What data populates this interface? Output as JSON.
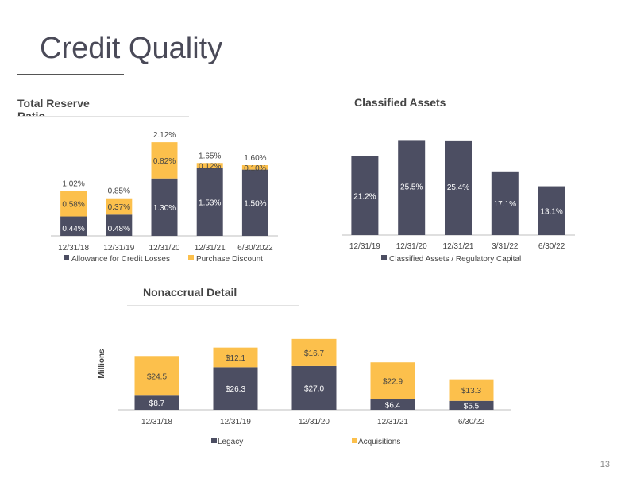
{
  "title": "Credit Quality",
  "page_number": "13",
  "colors": {
    "primary": "#4c4e62",
    "secondary": "#fcc04c",
    "axis": "#bfbfbf"
  },
  "chart_data": [
    {
      "type": "bar",
      "stacked": true,
      "title": "Total Reserve Ratio",
      "categories": [
        "12/31/18",
        "12/31/19",
        "12/31/20",
        "12/31/21",
        "6/30/2022"
      ],
      "series": [
        {
          "name": "Allowance for Credit Losses",
          "values": [
            0.44,
            0.48,
            1.3,
            1.53,
            1.5
          ],
          "labels": [
            "0.44%",
            "0.48%",
            "1.30%",
            "1.53%",
            "1.50%"
          ]
        },
        {
          "name": "Purchase Discount",
          "values": [
            0.58,
            0.37,
            0.82,
            0.12,
            0.1
          ],
          "labels": [
            "0.58%",
            "0.37%",
            "0.82%",
            "0.12%",
            "0.10%"
          ]
        }
      ],
      "totals": [
        "1.02%",
        "0.85%",
        "2.12%",
        "1.65%",
        "1.60%"
      ],
      "ylim": [
        0,
        2.5
      ],
      "legend": "bottom"
    },
    {
      "type": "bar",
      "title": "Classified Assets",
      "categories": [
        "12/31/19",
        "12/31/20",
        "12/31/21",
        "3/31/22",
        "6/30/22"
      ],
      "series": [
        {
          "name": "Classified Assets / Regulatory Capital",
          "values": [
            21.2,
            25.5,
            25.4,
            17.1,
            13.1
          ],
          "labels": [
            "21.2%",
            "25.5%",
            "25.4%",
            "17.1%",
            "13.1%"
          ]
        }
      ],
      "ylim": [
        0,
        29
      ],
      "legend": "bottom"
    },
    {
      "type": "bar",
      "stacked": true,
      "title": "Nonaccrual Detail",
      "ylabel": "Millions",
      "categories": [
        "12/31/18",
        "12/31/19",
        "12/31/20",
        "12/31/21",
        "6/30/22"
      ],
      "series": [
        {
          "name": "Legacy",
          "values": [
            8.7,
            26.3,
            27.0,
            6.4,
            5.5
          ],
          "labels": [
            "$8.7",
            "$26.3",
            "$27.0",
            "$6.4",
            "$5.5"
          ]
        },
        {
          "name": "Acquisitions",
          "values": [
            24.5,
            12.1,
            16.7,
            22.9,
            13.3
          ],
          "labels": [
            "$24.5",
            "$12.1",
            "$16.7",
            "$22.9",
            "$13.3"
          ]
        }
      ],
      "ylim": [
        0,
        50
      ],
      "legend": "bottom"
    }
  ]
}
